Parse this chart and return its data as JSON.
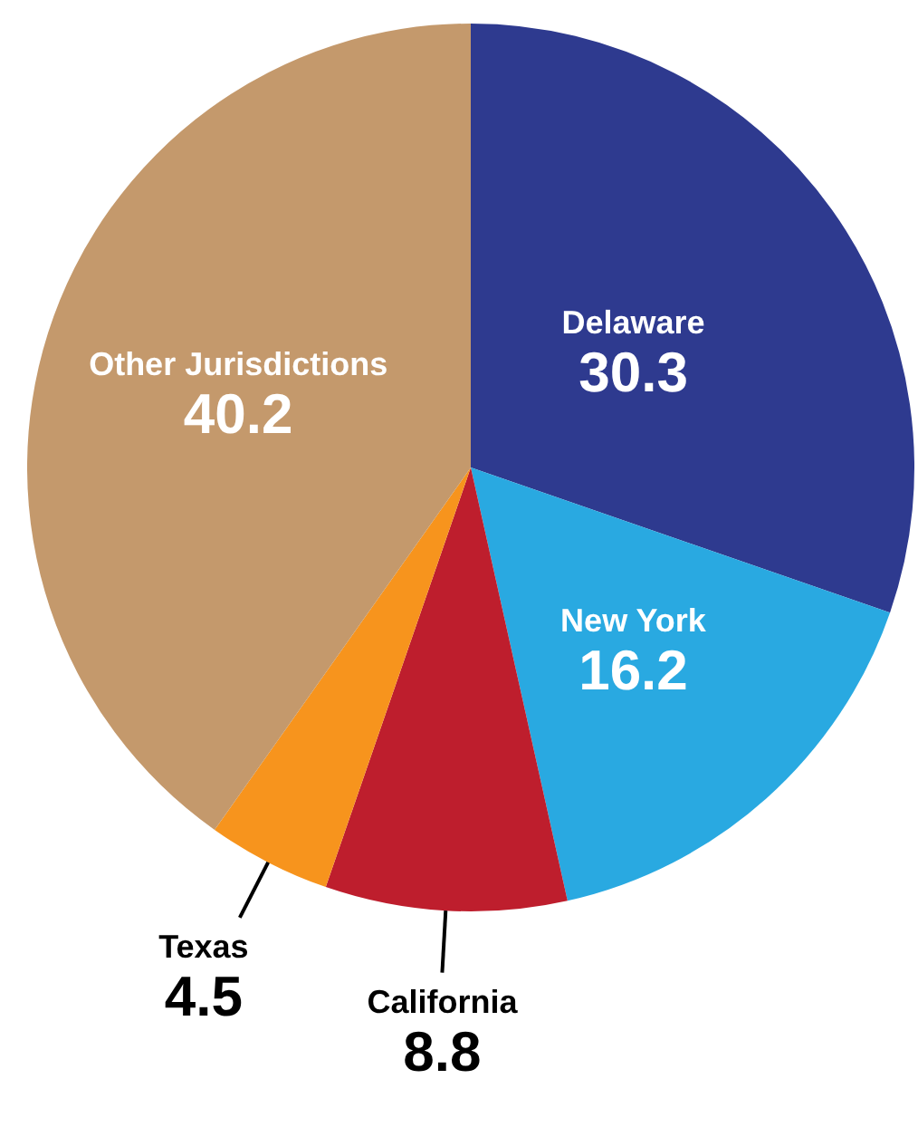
{
  "chart_data": {
    "type": "pie",
    "categories": [
      "Delaware",
      "New York",
      "California",
      "Texas",
      "Other Jurisdictions"
    ],
    "values": [
      30.3,
      16.2,
      8.8,
      4.5,
      40.2
    ],
    "colors": [
      "#2e3a8f",
      "#29a9e1",
      "#be1e2d",
      "#f7941d",
      "#c4996c"
    ],
    "data_labels": true,
    "legend": false
  }
}
